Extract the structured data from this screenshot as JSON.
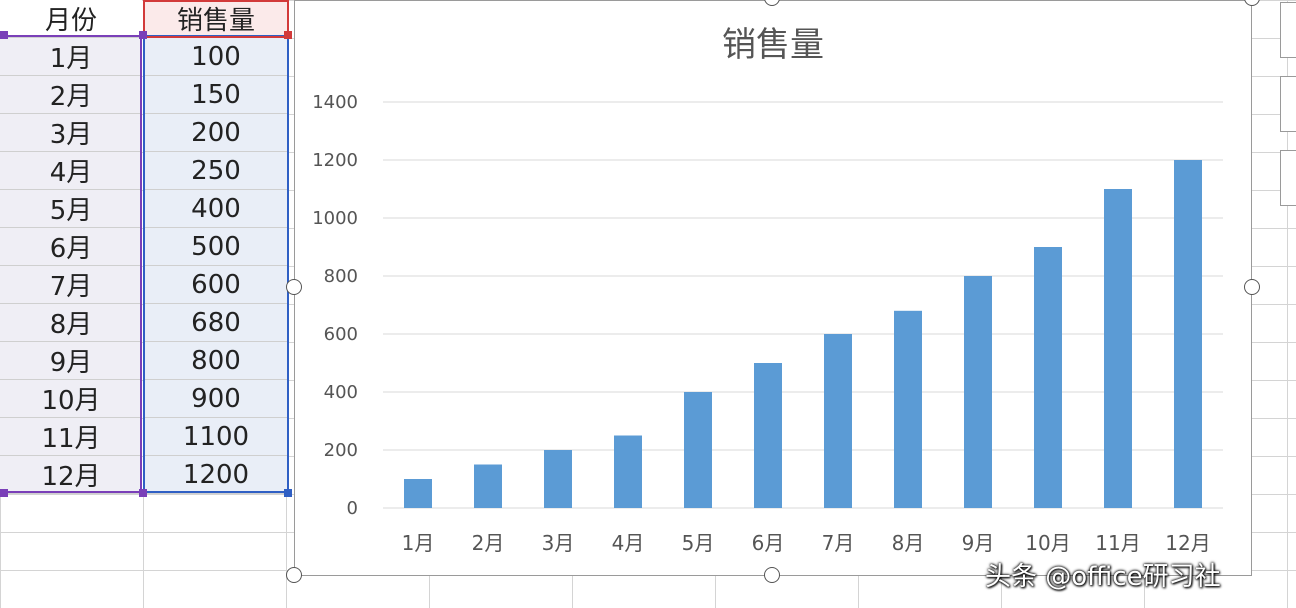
{
  "sheet": {
    "headers": [
      "月份",
      "销售量"
    ],
    "rows": [
      [
        "1月",
        "100"
      ],
      [
        "2月",
        "150"
      ],
      [
        "3月",
        "200"
      ],
      [
        "4月",
        "250"
      ],
      [
        "5月",
        "400"
      ],
      [
        "6月",
        "500"
      ],
      [
        "7月",
        "600"
      ],
      [
        "8月",
        "680"
      ],
      [
        "9月",
        "800"
      ],
      [
        "10月",
        "900"
      ],
      [
        "11月",
        "1100"
      ],
      [
        "12月",
        "1200"
      ]
    ]
  },
  "chart_data": {
    "type": "bar",
    "title": "销售量",
    "categories": [
      "1月",
      "2月",
      "3月",
      "4月",
      "5月",
      "6月",
      "7月",
      "8月",
      "9月",
      "10月",
      "11月",
      "12月"
    ],
    "values": [
      100,
      150,
      200,
      250,
      400,
      500,
      600,
      680,
      800,
      900,
      1100,
      1200
    ],
    "ylim": [
      0,
      1400
    ],
    "yticks": [
      0,
      200,
      400,
      600,
      800,
      1000,
      1200,
      1400
    ],
    "grid": true,
    "bar_color": "#5b9bd5",
    "legend": "none"
  },
  "watermark": "头条 @office研习社"
}
